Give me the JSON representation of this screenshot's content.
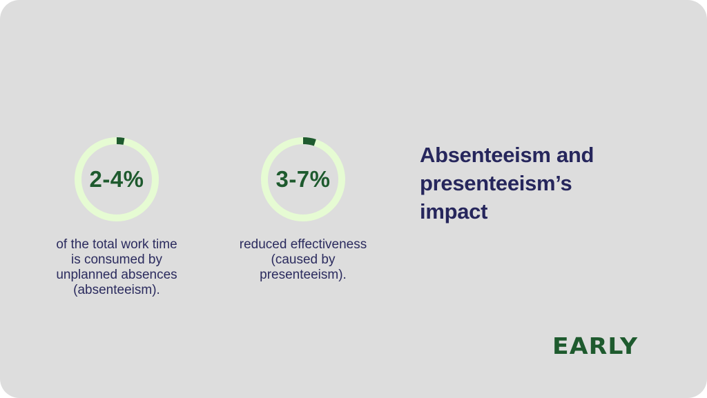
{
  "colors": {
    "card_background": "#dddddd",
    "ring_track": "#e6fbd3",
    "ring_progress": "#1e5a2e",
    "value_text": "#1e5a2e",
    "body_text": "#2b2b5e",
    "headline_text": "#26265c",
    "logo": "#1e5a2e"
  },
  "stats": [
    {
      "value": "2-4%",
      "description_lines": [
        "of the total work time",
        "is consumed by",
        "unplanned absences",
        "(absenteeism)."
      ],
      "ring_fill": 0.03
    },
    {
      "value": "3-7%",
      "description_lines": [
        "reduced effectiveness",
        "(caused by",
        "presenteeism)."
      ],
      "ring_fill": 0.05
    }
  ],
  "headline_lines": [
    "Absenteeism and",
    "presenteeism’s",
    "impact"
  ],
  "logo_text": "EARLY"
}
